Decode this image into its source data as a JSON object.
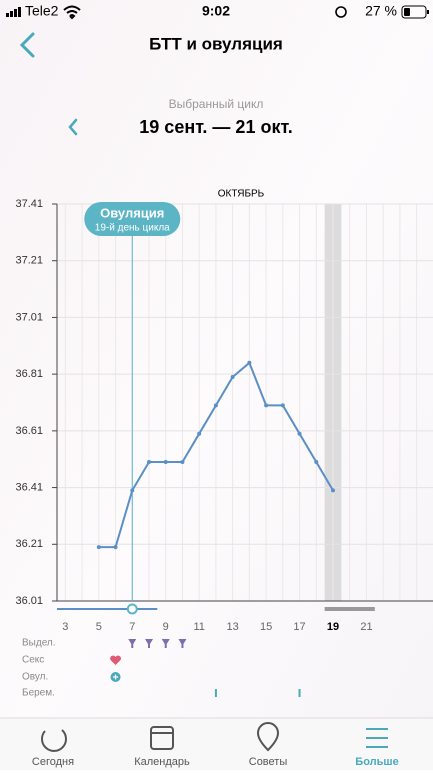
{
  "status_bar": {
    "carrier": "Tele2",
    "time": "9:02",
    "battery": "27 %"
  },
  "header": {
    "title": "БТТ и овуляция"
  },
  "cycle": {
    "label": "Выбранный цикл",
    "range": "19 сент. — 21 окт."
  },
  "chart_data": {
    "type": "line",
    "month_label": "ОКТЯБРЬ",
    "x": [
      5,
      6,
      7,
      8,
      9,
      10,
      11,
      12,
      13,
      14,
      15,
      16,
      17,
      18,
      19
    ],
    "values": [
      36.2,
      36.2,
      36.4,
      36.5,
      36.5,
      36.5,
      36.6,
      36.7,
      36.8,
      36.85,
      36.7,
      36.7,
      36.6,
      36.5,
      36.4
    ],
    "color": "#5b8fc7",
    "xlim": [
      2.5,
      24.5
    ],
    "xticks": [
      3,
      5,
      7,
      9,
      11,
      13,
      15,
      17,
      19,
      21
    ],
    "x_minor_ticks": [
      4,
      6,
      8,
      10,
      12,
      14,
      16,
      18,
      20,
      22,
      23,
      24
    ],
    "ylim": [
      36.01,
      37.41
    ],
    "yticks": [
      36.01,
      36.21,
      36.41,
      36.61,
      36.81,
      37.01,
      37.21,
      37.41
    ],
    "grid": true,
    "annotation": {
      "title": "Овуляция",
      "subtitle": "19-й день цикла",
      "x": 7
    },
    "highlight_x": 19
  },
  "tracks": [
    {
      "label": "Выдел.",
      "days": [
        7,
        8,
        9,
        10
      ]
    },
    {
      "label": "Секс",
      "days": [
        6
      ]
    },
    {
      "label": "Овул.",
      "days": [
        6
      ]
    },
    {
      "label": "Берем.",
      "days": [
        12,
        17
      ]
    }
  ],
  "tabs": [
    {
      "label": "Сегодня"
    },
    {
      "label": "Календарь"
    },
    {
      "label": "Советы"
    },
    {
      "label": "Больше"
    }
  ],
  "active_tab": 3
}
